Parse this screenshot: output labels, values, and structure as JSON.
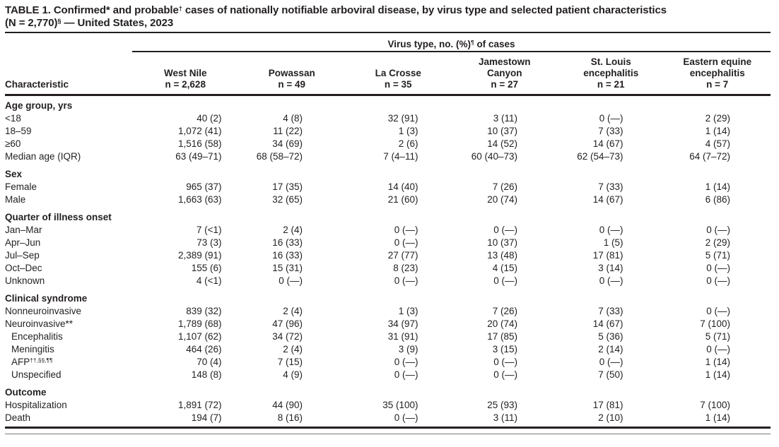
{
  "title": {
    "l1a": "TABLE 1. Confirmed* and probable",
    "l1sup": "†",
    "l1b": " cases of nationally notifiable arboviral disease, by virus type and selected patient characteristics",
    "l2a": "(N = 2,770)",
    "l2sup": "§",
    "l2b": " — United States, 2023"
  },
  "table": {
    "char_header": "Characteristic",
    "spanner": {
      "pre": "Virus type, no. (%)",
      "sup": "¶",
      "post": " of cases"
    },
    "columns": [
      {
        "id": "west-nile",
        "name_lines": [
          "West Nile"
        ],
        "n": "n = 2,628"
      },
      {
        "id": "powassan",
        "name_lines": [
          "Powassan"
        ],
        "n": "n = 49"
      },
      {
        "id": "la-crosse",
        "name_lines": [
          "La Crosse"
        ],
        "n": "n = 35"
      },
      {
        "id": "jamestown-canyon",
        "name_lines": [
          "Jamestown",
          "Canyon"
        ],
        "n": "n = 27"
      },
      {
        "id": "st-louis-encephalitis",
        "name_lines": [
          "St. Louis",
          "encephalitis"
        ],
        "n": "n = 21"
      },
      {
        "id": "eastern-equine-encephalitis",
        "name_lines": [
          "Eastern equine",
          "encephalitis"
        ],
        "n": "n = 7"
      }
    ],
    "sections": [
      {
        "header": "Age group, yrs",
        "rows": [
          {
            "label": "<18",
            "values": [
              "40 (2)",
              "4 (8)",
              "32 (91)",
              "3 (11)",
              "0 (—)",
              "2 (29)"
            ]
          },
          {
            "label": "18–59",
            "values": [
              "1,072 (41)",
              "11 (22)",
              "1 (3)",
              "10 (37)",
              "7 (33)",
              "1 (14)"
            ]
          },
          {
            "label": "≥60",
            "values": [
              "1,516 (58)",
              "34 (69)",
              "2 (6)",
              "14 (52)",
              "14 (67)",
              "4 (57)"
            ]
          },
          {
            "label": "Median age (IQR)",
            "values": [
              "63 (49–71)",
              "68 (58–72)",
              "7 (4–11)",
              "60 (40–73)",
              "62 (54–73)",
              "64 (7–72)"
            ]
          }
        ]
      },
      {
        "header": "Sex",
        "rows": [
          {
            "label": "Female",
            "values": [
              "965 (37)",
              "17 (35)",
              "14 (40)",
              "7 (26)",
              "7 (33)",
              "1 (14)"
            ]
          },
          {
            "label": "Male",
            "values": [
              "1,663 (63)",
              "32 (65)",
              "21 (60)",
              "20 (74)",
              "14 (67)",
              "6 (86)"
            ]
          }
        ]
      },
      {
        "header": "Quarter of illness onset",
        "rows": [
          {
            "label": "Jan–Mar",
            "values": [
              "7 (<1)",
              "2 (4)",
              "0 (—)",
              "0 (—)",
              "0 (—)",
              "0 (—)"
            ]
          },
          {
            "label": "Apr–Jun",
            "values": [
              "73 (3)",
              "16 (33)",
              "0 (—)",
              "10 (37)",
              "1 (5)",
              "2 (29)"
            ]
          },
          {
            "label": "Jul–Sep",
            "values": [
              "2,389 (91)",
              "16 (33)",
              "27 (77)",
              "13 (48)",
              "17 (81)",
              "5 (71)"
            ]
          },
          {
            "label": "Oct–Dec",
            "values": [
              "155 (6)",
              "15 (31)",
              "8 (23)",
              "4 (15)",
              "3 (14)",
              "0 (—)"
            ]
          },
          {
            "label": "Unknown",
            "values": [
              "4 (<1)",
              "0 (—)",
              "0 (—)",
              "0 (—)",
              "0 (—)",
              "0 (—)"
            ]
          }
        ]
      },
      {
        "header": "Clinical syndrome",
        "rows": [
          {
            "label": "Nonneuroinvasive",
            "values": [
              "839 (32)",
              "2 (4)",
              "1 (3)",
              "7 (26)",
              "7 (33)",
              "0 (—)"
            ]
          },
          {
            "label": "Neuroinvasive**",
            "values": [
              "1,789 (68)",
              "47 (96)",
              "34 (97)",
              "20 (74)",
              "14 (67)",
              "7 (100)"
            ]
          },
          {
            "label": "Encephalitis",
            "indent": true,
            "values": [
              "1,107 (62)",
              "34 (72)",
              "31 (91)",
              "17 (85)",
              "5 (36)",
              "5 (71)"
            ]
          },
          {
            "label": "Meningitis",
            "indent": true,
            "values": [
              "464 (26)",
              "2 (4)",
              "3 (9)",
              "3 (15)",
              "2 (14)",
              "0 (—)"
            ]
          },
          {
            "label": "AFP",
            "label_sup": "††,§§,¶¶",
            "indent": true,
            "values": [
              "70 (4)",
              "7 (15)",
              "0 (—)",
              "0 (—)",
              "0 (—)",
              "1 (14)"
            ]
          },
          {
            "label": "Unspecified",
            "indent": true,
            "values": [
              "148 (8)",
              "4 (9)",
              "0 (—)",
              "0 (—)",
              "7 (50)",
              "1 (14)"
            ]
          }
        ]
      },
      {
        "header": "Outcome",
        "rows": [
          {
            "label": "Hospitalization",
            "values": [
              "1,891 (72)",
              "44 (90)",
              "35 (100)",
              "25 (93)",
              "17 (81)",
              "7 (100)"
            ]
          },
          {
            "label": "Death",
            "values": [
              "194 (7)",
              "8 (16)",
              "0 (—)",
              "3 (11)",
              "2 (10)",
              "1 (14)"
            ]
          }
        ]
      }
    ]
  }
}
